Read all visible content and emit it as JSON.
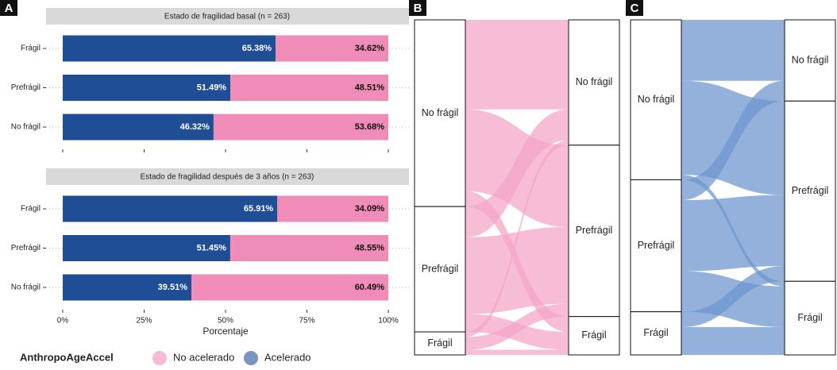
{
  "chart_data": [
    {
      "type": "bar",
      "panel": "A",
      "orientation": "horizontal",
      "stacked": true,
      "xlabel": "Porcentaje",
      "legend_title": "AnthropoAgeAccel",
      "xlim": [
        0,
        100
      ],
      "xticks": [
        {
          "value": 0,
          "label": "0%"
        },
        {
          "value": 25,
          "label": "25%"
        },
        {
          "value": 50,
          "label": "50%"
        },
        {
          "value": 75,
          "label": "75%"
        },
        {
          "value": 100,
          "label": "100%"
        }
      ],
      "facets": [
        {
          "title": "Estado de fragilidad basal (n = 263)",
          "categories": [
            "Frágil",
            "Prefrágil",
            "No frágil"
          ],
          "series": [
            {
              "name": "Acelerado",
              "color": "#1f4e96",
              "values": [
                65.38,
                51.49,
                46.32
              ],
              "value_labels": [
                "65.38%",
                "51.49%",
                "46.32%"
              ]
            },
            {
              "name": "No acelerado",
              "color": "#f08cb8",
              "values": [
                34.62,
                48.51,
                53.68
              ],
              "value_labels": [
                "34.62%",
                "48.51%",
                "53.68%"
              ]
            }
          ]
        },
        {
          "title": "Estado de fragilidad después de 3 años (n = 263)",
          "categories": [
            "Frágil",
            "Prefrágil",
            "No frágil"
          ],
          "series": [
            {
              "name": "Acelerado",
              "color": "#1f4e96",
              "values": [
                65.91,
                51.45,
                39.51
              ],
              "value_labels": [
                "65.91%",
                "51.45%",
                "39.51%"
              ]
            },
            {
              "name": "No acelerado",
              "color": "#f08cb8",
              "values": [
                34.09,
                48.55,
                60.49
              ],
              "value_labels": [
                "34.09%",
                "48.55%",
                "60.49%"
              ]
            }
          ]
        }
      ]
    },
    {
      "type": "sankey",
      "panel": "B",
      "color": "#f4a6c8",
      "left_nodes": {
        "labels": [
          "No frágil",
          "Prefrágil",
          "Frágil"
        ],
        "values": [
          73,
          49,
          9
        ]
      },
      "right_nodes": {
        "labels": [
          "No frágil",
          "Prefrágil",
          "Frágil"
        ],
        "values": [
          49,
          67,
          15
        ]
      },
      "flows": [
        {
          "from": "No frágil",
          "to": "No frágil",
          "value": 35
        },
        {
          "from": "No frágil",
          "to": "Prefrágil",
          "value": 32
        },
        {
          "from": "No frágil",
          "to": "Frágil",
          "value": 6
        },
        {
          "from": "Prefrágil",
          "to": "No frágil",
          "value": 12
        },
        {
          "from": "Prefrágil",
          "to": "Prefrágil",
          "value": 30
        },
        {
          "from": "Prefrágil",
          "to": "Frágil",
          "value": 7
        },
        {
          "from": "Frágil",
          "to": "No frágil",
          "value": 2
        },
        {
          "from": "Frágil",
          "to": "Prefrágil",
          "value": 5
        },
        {
          "from": "Frágil",
          "to": "Frágil",
          "value": 2
        }
      ]
    },
    {
      "type": "sankey",
      "panel": "C",
      "color": "#6f97cf",
      "left_nodes": {
        "labels": [
          "No frágil",
          "Prefrágil",
          "Frágil"
        ],
        "values": [
          63,
          52,
          17
        ]
      },
      "right_nodes": {
        "labels": [
          "No frágil",
          "Prefrágil",
          "Frágil"
        ],
        "values": [
          32,
          71,
          29
        ]
      },
      "flows": [
        {
          "from": "No frágil",
          "to": "No frágil",
          "value": 24
        },
        {
          "from": "No frágil",
          "to": "Prefrágil",
          "value": 37
        },
        {
          "from": "No frágil",
          "to": "Frágil",
          "value": 2
        },
        {
          "from": "Prefrágil",
          "to": "No frágil",
          "value": 8
        },
        {
          "from": "Prefrágil",
          "to": "Prefrágil",
          "value": 28
        },
        {
          "from": "Prefrágil",
          "to": "Frágil",
          "value": 16
        },
        {
          "from": "Frágil",
          "to": "Prefrágil",
          "value": 6
        },
        {
          "from": "Frágil",
          "to": "Frágil",
          "value": 11
        }
      ]
    }
  ]
}
